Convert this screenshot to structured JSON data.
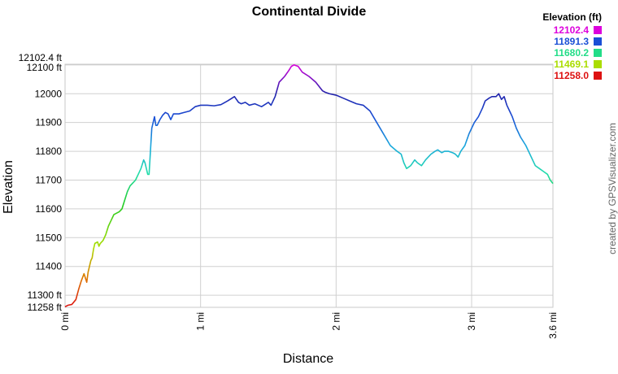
{
  "chart_data": {
    "type": "line",
    "title": "Continental Divide",
    "xlabel": "Distance",
    "ylabel": "Elevation",
    "xlim": [
      0,
      3.6
    ],
    "ylim": [
      11258.0,
      12102.4
    ],
    "x_ticks": [
      {
        "value": 0,
        "label": "0 mi"
      },
      {
        "value": 1,
        "label": "1 mi"
      },
      {
        "value": 2,
        "label": "2 mi"
      },
      {
        "value": 3,
        "label": "3 mi"
      },
      {
        "value": 3.6,
        "label": "3.6 mi"
      }
    ],
    "y_ticks": [
      {
        "value": 11258.0,
        "label": "11258 ft"
      },
      {
        "value": 11300,
        "label": "11300 ft"
      },
      {
        "value": 11400,
        "label": "11400"
      },
      {
        "value": 11500,
        "label": "11500"
      },
      {
        "value": 11600,
        "label": "11600"
      },
      {
        "value": 11700,
        "label": "11700"
      },
      {
        "value": 11800,
        "label": "11800"
      },
      {
        "value": 11900,
        "label": "11900"
      },
      {
        "value": 12000,
        "label": "12000"
      },
      {
        "value": 12100,
        "label": "12100 ft"
      },
      {
        "value": 12102.4,
        "label": "12102.4 ft"
      }
    ],
    "grid": true,
    "legend": {
      "title": "Elevation (ft)",
      "placement": "top-right",
      "entries": [
        {
          "label": "12102.4",
          "color": "#dd00dd"
        },
        {
          "label": "11891.3",
          "color": "#1a4fd6"
        },
        {
          "label": "11680.2",
          "color": "#22dd88"
        },
        {
          "label": "11469.1",
          "color": "#aadd00"
        },
        {
          "label": "11258.0",
          "color": "#dd1111"
        }
      ]
    },
    "credit": "created by GPSVisualizer.com",
    "series": [
      {
        "x": [
          0,
          0.02,
          0.05,
          0.08,
          0.1,
          0.12,
          0.14,
          0.15,
          0.16,
          0.17,
          0.18,
          0.19,
          0.2,
          0.21,
          0.22,
          0.24,
          0.25,
          0.26,
          0.28,
          0.3,
          0.32,
          0.34,
          0.36,
          0.38,
          0.4,
          0.42,
          0.44,
          0.46,
          0.48,
          0.5,
          0.52,
          0.54,
          0.56,
          0.58,
          0.59,
          0.6,
          0.61,
          0.62,
          0.63,
          0.64,
          0.65,
          0.66,
          0.67,
          0.68,
          0.7,
          0.72,
          0.74,
          0.76,
          0.78,
          0.8,
          0.84,
          0.88,
          0.92,
          0.96,
          1.0,
          1.05,
          1.1,
          1.15,
          1.2,
          1.25,
          1.28,
          1.3,
          1.33,
          1.36,
          1.4,
          1.45,
          1.5,
          1.52,
          1.55,
          1.58,
          1.6,
          1.62,
          1.65,
          1.67,
          1.69,
          1.72,
          1.75,
          1.8,
          1.85,
          1.9,
          1.92,
          1.95,
          2.0,
          2.05,
          2.1,
          2.15,
          2.2,
          2.25,
          2.3,
          2.35,
          2.4,
          2.45,
          2.48,
          2.5,
          2.52,
          2.55,
          2.58,
          2.6,
          2.63,
          2.66,
          2.7,
          2.73,
          2.75,
          2.78,
          2.8,
          2.83,
          2.86,
          2.88,
          2.9,
          2.92,
          2.95,
          2.98,
          3.0,
          3.02,
          3.05,
          3.08,
          3.1,
          3.13,
          3.15,
          3.18,
          3.2,
          3.22,
          3.24,
          3.26,
          3.28,
          3.3,
          3.33,
          3.36,
          3.4,
          3.44,
          3.47,
          3.5,
          3.53,
          3.56,
          3.58,
          3.6
        ],
        "y": [
          11260,
          11265,
          11268,
          11285,
          11320,
          11350,
          11375,
          11360,
          11345,
          11380,
          11400,
          11420,
          11430,
          11460,
          11480,
          11485,
          11470,
          11480,
          11490,
          11510,
          11540,
          11560,
          11580,
          11585,
          11590,
          11600,
          11630,
          11660,
          11680,
          11690,
          11700,
          11720,
          11740,
          11770,
          11760,
          11740,
          11720,
          11720,
          11800,
          11880,
          11900,
          11920,
          11890,
          11890,
          11910,
          11925,
          11935,
          11930,
          11910,
          11930,
          11930,
          11935,
          11940,
          11955,
          11960,
          11960,
          11958,
          11962,
          11975,
          11990,
          11970,
          11965,
          11970,
          11960,
          11965,
          11955,
          11970,
          11960,
          11990,
          12040,
          12050,
          12060,
          12080,
          12095,
          12100,
          12095,
          12075,
          12060,
          12040,
          12010,
          12005,
          12000,
          11995,
          11985,
          11975,
          11965,
          11960,
          11940,
          11900,
          11860,
          11820,
          11800,
          11790,
          11760,
          11740,
          11750,
          11770,
          11760,
          11750,
          11770,
          11790,
          11800,
          11805,
          11795,
          11800,
          11800,
          11795,
          11790,
          11780,
          11800,
          11820,
          11860,
          11880,
          11900,
          11920,
          11950,
          11975,
          11985,
          11990,
          11990,
          12000,
          11980,
          11990,
          11960,
          11940,
          11920,
          11880,
          11850,
          11820,
          11780,
          11750,
          11740,
          11730,
          11720,
          11700,
          11688
        ]
      }
    ]
  }
}
